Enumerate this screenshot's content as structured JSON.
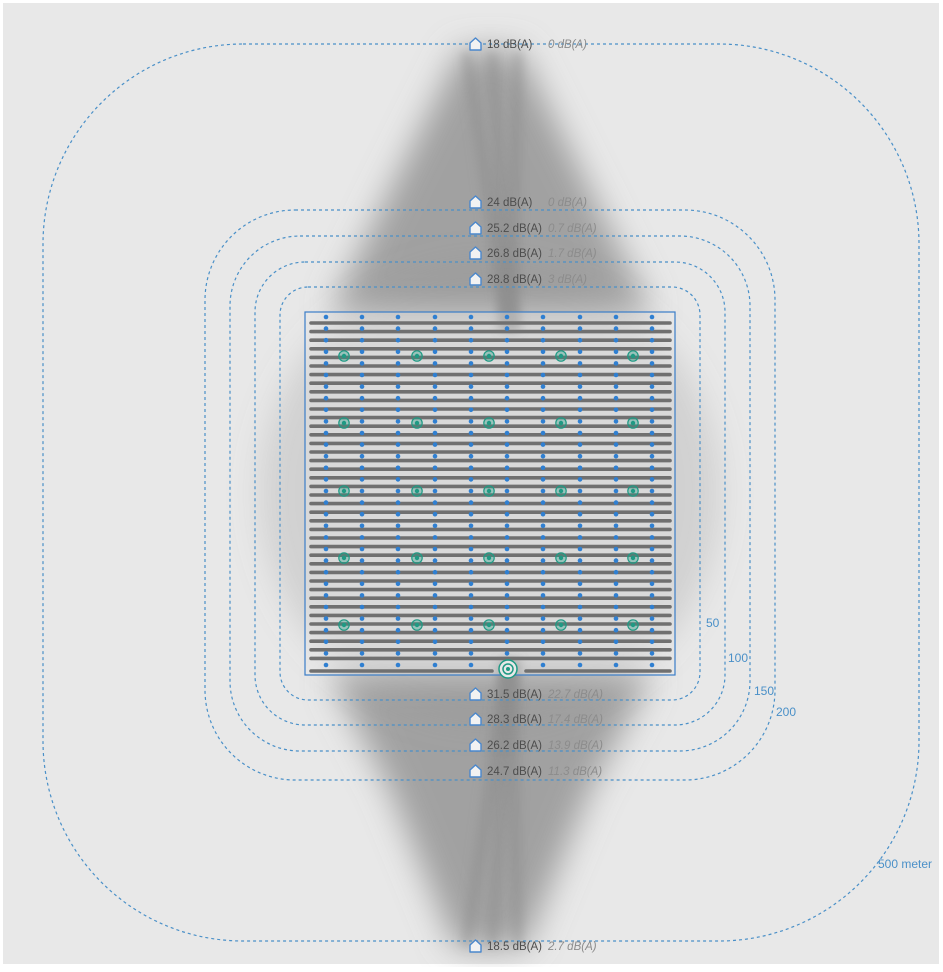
{
  "colors": {
    "background": "#e8e8e8",
    "canvas_border": "#ffffff",
    "ring_stroke": "#4a90c8",
    "ring_label": "#4a90c8",
    "panel_border": "#3a7dc8",
    "panel_fill": "#e8e8e8",
    "panel_row": "#707070",
    "tracker_post": "#2f7fd1",
    "turbine": "#1f9a84",
    "receptor_icon": "#4a87cc",
    "level_text": "#4d4d4d",
    "delta_text": "#8c8c8c",
    "shadow": "#8a8a8a"
  },
  "distance_rings": [
    {
      "label": "50"
    },
    {
      "label": "100"
    },
    {
      "label": "150"
    },
    {
      "label": "200"
    },
    {
      "label": "500 meter"
    }
  ],
  "receptors_north": [
    {
      "level": "18 dB(A)",
      "delta": "0 dB(A)"
    },
    {
      "level": "24 dB(A)",
      "delta": "0 dB(A)"
    },
    {
      "level": "25.2 dB(A)",
      "delta": "0.7 dB(A)"
    },
    {
      "level": "26.8 dB(A)",
      "delta": "1.7 dB(A)"
    },
    {
      "level": "28.8 dB(A)",
      "delta": "3 dB(A)"
    }
  ],
  "receptors_south": [
    {
      "level": "31.5 dB(A)",
      "delta": "22.7 dB(A)"
    },
    {
      "level": "28.3 dB(A)",
      "delta": "17.4 dB(A)"
    },
    {
      "level": "26.2 dB(A)",
      "delta": "13.9 dB(A)"
    },
    {
      "level": "24.7 dB(A)",
      "delta": "11.3 dB(A)"
    },
    {
      "level": "18.5 dB(A)",
      "delta": "2.7 dB(A)"
    }
  ],
  "icons": {
    "receptor": "house-icon",
    "turbine": "turbine-icon",
    "source": "noise-source-icon"
  }
}
